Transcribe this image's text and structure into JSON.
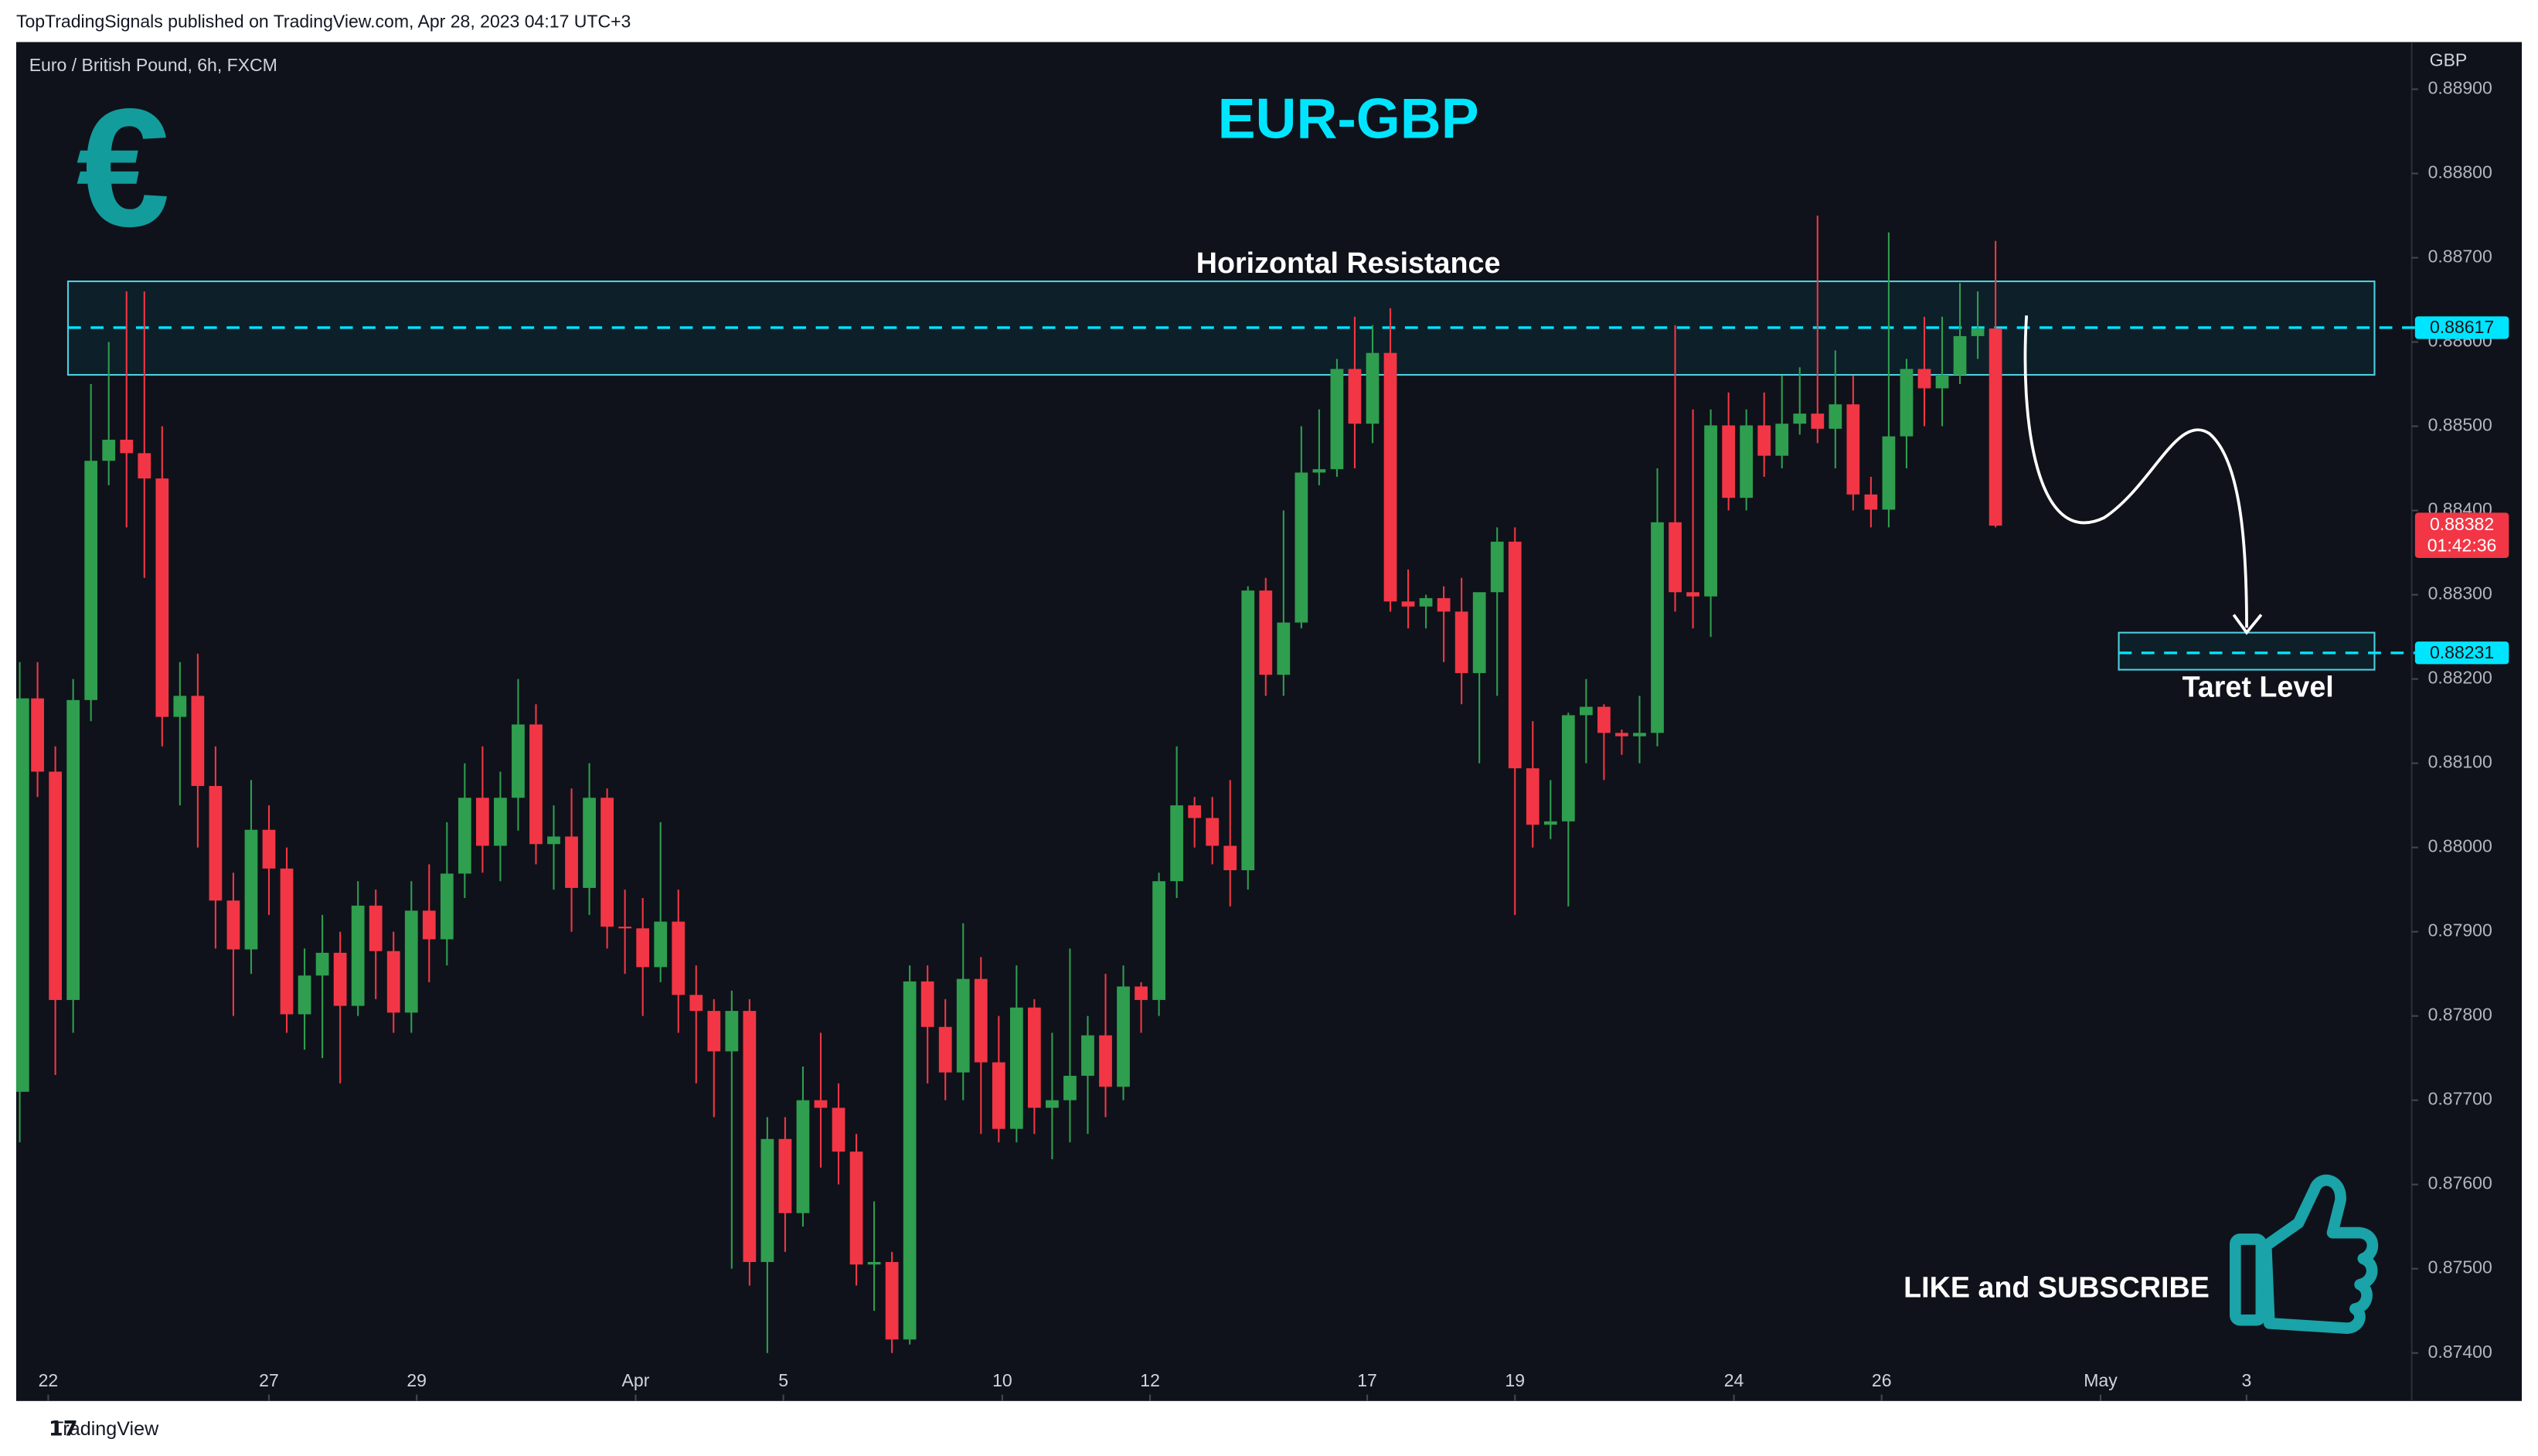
{
  "header": {
    "publisher": "TopTradingSignals published on TradingView.com, Apr 28, 2023 04:17 UTC+3",
    "brand": "TradingView"
  },
  "chart_data": {
    "type": "candlestick",
    "title": "EUR-GBP",
    "symbol": "Euro / British Pound, 6h, FXCM",
    "currency": "GBP",
    "icon": "€",
    "up_color": "#2f9e4f",
    "down_color": "#f23645",
    "ohlc": [
      [
        0.8771,
        0.8822,
        0.8765,
        0.88177
      ],
      [
        0.88177,
        0.8822,
        0.8806,
        0.8809
      ],
      [
        0.8809,
        0.8812,
        0.8773,
        0.87819
      ],
      [
        0.87819,
        0.882,
        0.8778,
        0.88175
      ],
      [
        0.88175,
        0.8855,
        0.8815,
        0.88459
      ],
      [
        0.88459,
        0.886,
        0.8843,
        0.88484
      ],
      [
        0.88484,
        0.8866,
        0.8838,
        0.88468
      ],
      [
        0.88468,
        0.8866,
        0.8832,
        0.88438
      ],
      [
        0.88438,
        0.885,
        0.8812,
        0.88155
      ],
      [
        0.88155,
        0.8822,
        0.8805,
        0.8818
      ],
      [
        0.8818,
        0.8823,
        0.88,
        0.88073
      ],
      [
        0.88073,
        0.8812,
        0.8788,
        0.87937
      ],
      [
        0.87937,
        0.8797,
        0.878,
        0.87879
      ],
      [
        0.87879,
        0.8808,
        0.8785,
        0.88021
      ],
      [
        0.88021,
        0.8805,
        0.8792,
        0.87975
      ],
      [
        0.87975,
        0.88,
        0.8778,
        0.87802
      ],
      [
        0.87802,
        0.8788,
        0.8776,
        0.87848
      ],
      [
        0.87848,
        0.8792,
        0.8775,
        0.87875
      ],
      [
        0.87875,
        0.879,
        0.8772,
        0.87812
      ],
      [
        0.87812,
        0.8796,
        0.878,
        0.87931
      ],
      [
        0.87931,
        0.8795,
        0.8782,
        0.87877
      ],
      [
        0.87877,
        0.879,
        0.8778,
        0.87804
      ],
      [
        0.87804,
        0.8796,
        0.8778,
        0.87925
      ],
      [
        0.87925,
        0.8798,
        0.8784,
        0.87891
      ],
      [
        0.87891,
        0.8803,
        0.8786,
        0.87969
      ],
      [
        0.87969,
        0.881,
        0.8794,
        0.88059
      ],
      [
        0.88059,
        0.8812,
        0.8797,
        0.88002
      ],
      [
        0.88002,
        0.8809,
        0.8796,
        0.88059
      ],
      [
        0.88059,
        0.882,
        0.8802,
        0.88146
      ],
      [
        0.88146,
        0.8817,
        0.8798,
        0.88004
      ],
      [
        0.88004,
        0.8805,
        0.8795,
        0.88013
      ],
      [
        0.88013,
        0.8807,
        0.879,
        0.87952
      ],
      [
        0.87952,
        0.881,
        0.8792,
        0.88059
      ],
      [
        0.88059,
        0.8807,
        0.8788,
        0.87906
      ],
      [
        0.87906,
        0.8795,
        0.8785,
        0.87904
      ],
      [
        0.87904,
        0.8794,
        0.878,
        0.87858
      ],
      [
        0.87858,
        0.8803,
        0.8784,
        0.87912
      ],
      [
        0.87912,
        0.8795,
        0.8778,
        0.87825
      ],
      [
        0.87825,
        0.8786,
        0.8772,
        0.87806
      ],
      [
        0.87806,
        0.8782,
        0.8768,
        0.87758
      ],
      [
        0.87758,
        0.8783,
        0.875,
        0.87806
      ],
      [
        0.87806,
        0.8782,
        0.8748,
        0.87508
      ],
      [
        0.87508,
        0.8768,
        0.874,
        0.87654
      ],
      [
        0.87654,
        0.8768,
        0.8752,
        0.87566
      ],
      [
        0.87566,
        0.8774,
        0.8755,
        0.877
      ],
      [
        0.877,
        0.8778,
        0.8762,
        0.87691
      ],
      [
        0.87691,
        0.8772,
        0.876,
        0.87639
      ],
      [
        0.87639,
        0.8766,
        0.8748,
        0.87505
      ],
      [
        0.87505,
        0.8758,
        0.8745,
        0.87508
      ],
      [
        0.87508,
        0.8752,
        0.874,
        0.87416
      ],
      [
        0.87416,
        0.8786,
        0.8741,
        0.87841
      ],
      [
        0.87841,
        0.8786,
        0.8772,
        0.87787
      ],
      [
        0.87787,
        0.8782,
        0.877,
        0.87733
      ],
      [
        0.87733,
        0.8791,
        0.877,
        0.87844
      ],
      [
        0.87844,
        0.8787,
        0.8766,
        0.87745
      ],
      [
        0.87745,
        0.878,
        0.8765,
        0.87666
      ],
      [
        0.87666,
        0.8786,
        0.8765,
        0.8781
      ],
      [
        0.8781,
        0.8782,
        0.8766,
        0.87691
      ],
      [
        0.87691,
        0.8778,
        0.8763,
        0.877
      ],
      [
        0.877,
        0.8788,
        0.8765,
        0.87729
      ],
      [
        0.87729,
        0.878,
        0.8766,
        0.87777
      ],
      [
        0.87777,
        0.8785,
        0.8768,
        0.87716
      ],
      [
        0.87716,
        0.8786,
        0.877,
        0.87835
      ],
      [
        0.87835,
        0.8784,
        0.8778,
        0.87819
      ],
      [
        0.87819,
        0.8797,
        0.878,
        0.8796
      ],
      [
        0.8796,
        0.8812,
        0.8794,
        0.8805
      ],
      [
        0.8805,
        0.8806,
        0.88,
        0.88035
      ],
      [
        0.88035,
        0.8806,
        0.8798,
        0.88002
      ],
      [
        0.88002,
        0.8808,
        0.8793,
        0.87973
      ],
      [
        0.87973,
        0.8831,
        0.8795,
        0.88305
      ],
      [
        0.88305,
        0.8832,
        0.8818,
        0.88205
      ],
      [
        0.88205,
        0.884,
        0.8818,
        0.88267
      ],
      [
        0.88267,
        0.885,
        0.8826,
        0.88445
      ],
      [
        0.88445,
        0.8852,
        0.8843,
        0.88449
      ],
      [
        0.88449,
        0.8858,
        0.8844,
        0.88568
      ],
      [
        0.88568,
        0.8863,
        0.8845,
        0.88503
      ],
      [
        0.88503,
        0.8862,
        0.8848,
        0.88587
      ],
      [
        0.88587,
        0.8864,
        0.8828,
        0.88292
      ],
      [
        0.88292,
        0.8833,
        0.8826,
        0.88286
      ],
      [
        0.88286,
        0.883,
        0.8826,
        0.88296
      ],
      [
        0.88296,
        0.8831,
        0.8822,
        0.8828
      ],
      [
        0.8828,
        0.8832,
        0.8817,
        0.88207
      ],
      [
        0.88207,
        0.883,
        0.881,
        0.88303
      ],
      [
        0.88303,
        0.8838,
        0.8818,
        0.88363
      ],
      [
        0.88363,
        0.8838,
        0.8792,
        0.88094
      ],
      [
        0.88094,
        0.8815,
        0.88,
        0.88027
      ],
      [
        0.88027,
        0.8808,
        0.8801,
        0.88031
      ],
      [
        0.88031,
        0.8816,
        0.8793,
        0.88157
      ],
      [
        0.88157,
        0.882,
        0.881,
        0.88167
      ],
      [
        0.88167,
        0.8817,
        0.8808,
        0.88136
      ],
      [
        0.88136,
        0.8814,
        0.8811,
        0.88132
      ],
      [
        0.88132,
        0.8818,
        0.881,
        0.88136
      ],
      [
        0.88136,
        0.8845,
        0.8812,
        0.88386
      ],
      [
        0.88386,
        0.8862,
        0.8828,
        0.88303
      ],
      [
        0.88303,
        0.8852,
        0.8826,
        0.88298
      ],
      [
        0.88298,
        0.8852,
        0.8825,
        0.88501
      ],
      [
        0.88501,
        0.8854,
        0.884,
        0.88415
      ],
      [
        0.88415,
        0.8852,
        0.884,
        0.88501
      ],
      [
        0.88501,
        0.8854,
        0.8844,
        0.88465
      ],
      [
        0.88465,
        0.8856,
        0.8845,
        0.88503
      ],
      [
        0.88503,
        0.8857,
        0.8849,
        0.88515
      ],
      [
        0.88515,
        0.8875,
        0.8848,
        0.88497
      ],
      [
        0.88497,
        0.8859,
        0.8845,
        0.88526
      ],
      [
        0.88526,
        0.8856,
        0.884,
        0.88419
      ],
      [
        0.88419,
        0.8844,
        0.8838,
        0.88401
      ],
      [
        0.88401,
        0.8873,
        0.8838,
        0.88488
      ],
      [
        0.88488,
        0.8858,
        0.8845,
        0.88568
      ],
      [
        0.88568,
        0.8863,
        0.885,
        0.88545
      ],
      [
        0.88545,
        0.8863,
        0.885,
        0.88561
      ],
      [
        0.88561,
        0.8867,
        0.8855,
        0.88607
      ],
      [
        0.88607,
        0.8866,
        0.8858,
        0.88616
      ],
      [
        0.88616,
        0.8872,
        0.8838,
        0.88382
      ]
    ],
    "xlim": [
      -0.2,
      134.2
    ],
    "xticks": [
      {
        "value": 1.6,
        "label": "22"
      },
      {
        "value": 14.0,
        "label": "27"
      },
      {
        "value": 22.3,
        "label": "29"
      },
      {
        "value": 34.6,
        "label": "Apr"
      },
      {
        "value": 42.9,
        "label": "5"
      },
      {
        "value": 55.2,
        "label": "10"
      },
      {
        "value": 63.5,
        "label": "12"
      },
      {
        "value": 75.7,
        "label": "17"
      },
      {
        "value": 84.0,
        "label": "19"
      },
      {
        "value": 96.3,
        "label": "24"
      },
      {
        "value": 104.6,
        "label": "26"
      },
      {
        "value": 116.9,
        "label": "May"
      },
      {
        "value": 125.1,
        "label": "3"
      }
    ],
    "ylim": [
      0.87343,
      0.88956
    ],
    "yticks": [
      {
        "value": 0.874,
        "label": "0.87400"
      },
      {
        "value": 0.875,
        "label": "0.87500"
      },
      {
        "value": 0.876,
        "label": "0.87600"
      },
      {
        "value": 0.877,
        "label": "0.87700"
      },
      {
        "value": 0.878,
        "label": "0.87800"
      },
      {
        "value": 0.879,
        "label": "0.87900"
      },
      {
        "value": 0.88,
        "label": "0.88000"
      },
      {
        "value": 0.881,
        "label": "0.88100"
      },
      {
        "value": 0.882,
        "label": "0.88200"
      },
      {
        "value": 0.883,
        "label": "0.88300"
      },
      {
        "value": 0.884,
        "label": "0.88400"
      },
      {
        "value": 0.885,
        "label": "0.88500"
      },
      {
        "value": 0.886,
        "label": "0.88600"
      },
      {
        "value": 0.887,
        "label": "0.88700"
      },
      {
        "value": 0.888,
        "label": "0.88800"
      },
      {
        "value": 0.889,
        "label": "0.88900"
      }
    ],
    "resistance": {
      "label": "Horizontal Resistance",
      "value": 0.88617,
      "value_label": "0.88617",
      "zone": [
        0.88561,
        0.88672
      ]
    },
    "target": {
      "label": "Taret Level",
      "value": 0.88231,
      "value_label": "0.88231",
      "zone": [
        0.88211,
        0.88255
      ]
    },
    "last_price": {
      "value": 0.88382,
      "value_label": "0.88382",
      "countdown": "01:42:36"
    },
    "call_to_action": "LIKE and SUBSCRIBE"
  }
}
